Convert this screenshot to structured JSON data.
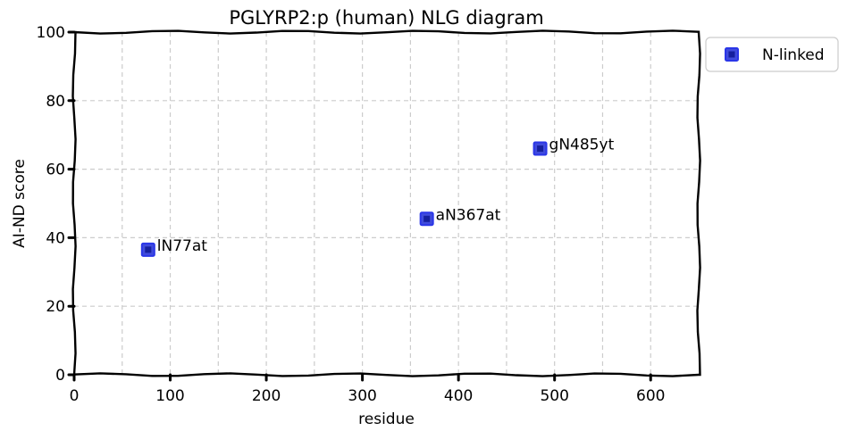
{
  "chart_data": {
    "type": "scatter",
    "title": "PGLYRP2:p (human) NLG diagram",
    "xlabel": "residue",
    "ylabel": "AI-ND score",
    "xlim": [
      0,
      650
    ],
    "ylim": [
      0,
      100
    ],
    "xticks": [
      0,
      100,
      200,
      300,
      400,
      500,
      600
    ],
    "yticks": [
      0,
      20,
      40,
      60,
      80,
      100
    ],
    "grid": true,
    "legend_position": "outside-top-right",
    "series": [
      {
        "name": "N-linked",
        "color": "#1f2bd6",
        "marker": "square",
        "points": [
          {
            "x": 77,
            "y": 36.5,
            "label": "lN77at"
          },
          {
            "x": 367,
            "y": 45.5,
            "label": "aN367at"
          },
          {
            "x": 485,
            "y": 66,
            "label": "gN485yt"
          }
        ]
      }
    ]
  }
}
